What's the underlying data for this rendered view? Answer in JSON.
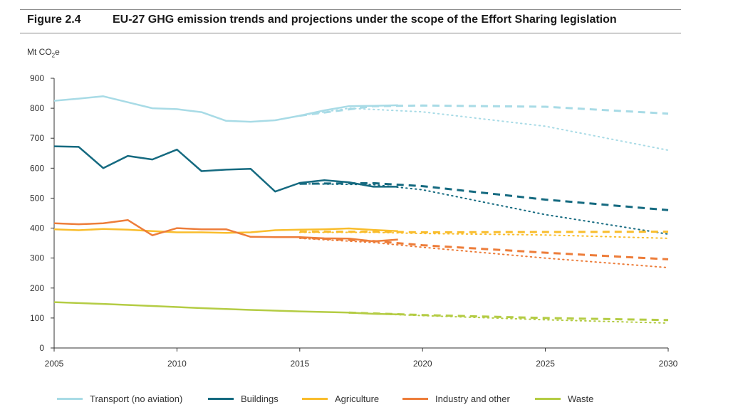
{
  "figure": {
    "label": "Figure 2.4",
    "title": "EU-27 GHG emission trends and projections under the scope of the Effort Sharing legislation"
  },
  "axis": {
    "unit_prefix": "Mt CO",
    "unit_sub": "2",
    "unit_suffix": "e"
  },
  "chart_data": {
    "type": "line",
    "title": "EU-27 GHG emission trends and projections under the scope of the Effort Sharing legislation",
    "ylabel": "Mt CO2e",
    "xlabel": "",
    "xlim": [
      2005,
      2030
    ],
    "ylim": [
      0,
      900
    ],
    "x_ticks": [
      2005,
      2010,
      2015,
      2020,
      2025,
      2030
    ],
    "y_ticks": [
      0,
      100,
      200,
      300,
      400,
      500,
      600,
      700,
      800,
      900
    ],
    "grid": false,
    "legend_position": "bottom",
    "series": [
      {
        "name": "Transport (no aviation)",
        "color": "#a8dbe6",
        "historic": [
          [
            2005,
            825
          ],
          [
            2006,
            832
          ],
          [
            2007,
            840
          ],
          [
            2008,
            820
          ],
          [
            2009,
            800
          ],
          [
            2010,
            797
          ],
          [
            2011,
            787
          ],
          [
            2012,
            758
          ],
          [
            2013,
            755
          ],
          [
            2014,
            760
          ],
          [
            2015,
            775
          ],
          [
            2016,
            793
          ],
          [
            2017,
            807
          ],
          [
            2018,
            808
          ],
          [
            2019,
            810
          ]
        ],
        "projection_wem": [
          [
            2015,
            775
          ],
          [
            2018,
            807
          ],
          [
            2020,
            809
          ],
          [
            2025,
            805
          ],
          [
            2030,
            782
          ]
        ],
        "projection_wam": [
          [
            2015,
            775
          ],
          [
            2017,
            800
          ],
          [
            2020,
            788
          ],
          [
            2025,
            740
          ],
          [
            2030,
            660
          ]
        ]
      },
      {
        "name": "Buildings",
        "color": "#156a80",
        "historic": [
          [
            2005,
            673
          ],
          [
            2006,
            671
          ],
          [
            2007,
            600
          ],
          [
            2008,
            641
          ],
          [
            2009,
            629
          ],
          [
            2010,
            662
          ],
          [
            2011,
            590
          ],
          [
            2012,
            595
          ],
          [
            2013,
            598
          ],
          [
            2014,
            522
          ],
          [
            2015,
            551
          ],
          [
            2016,
            560
          ],
          [
            2017,
            553
          ],
          [
            2018,
            538
          ],
          [
            2019,
            538
          ]
        ],
        "projection_wem": [
          [
            2015,
            548
          ],
          [
            2018,
            550
          ],
          [
            2020,
            540
          ],
          [
            2025,
            495
          ],
          [
            2030,
            460
          ]
        ],
        "projection_wam": [
          [
            2015,
            548
          ],
          [
            2018,
            545
          ],
          [
            2020,
            528
          ],
          [
            2025,
            445
          ],
          [
            2030,
            380
          ]
        ]
      },
      {
        "name": "Agriculture",
        "color": "#f9bd2c",
        "historic": [
          [
            2005,
            396
          ],
          [
            2006,
            393
          ],
          [
            2007,
            397
          ],
          [
            2008,
            395
          ],
          [
            2009,
            390
          ],
          [
            2010,
            386
          ],
          [
            2011,
            386
          ],
          [
            2012,
            384
          ],
          [
            2013,
            386
          ],
          [
            2014,
            393
          ],
          [
            2015,
            395
          ],
          [
            2016,
            396
          ],
          [
            2017,
            399
          ],
          [
            2018,
            394
          ],
          [
            2019,
            390
          ]
        ],
        "projection_wem": [
          [
            2015,
            388
          ],
          [
            2018,
            388
          ],
          [
            2020,
            386
          ],
          [
            2025,
            387
          ],
          [
            2030,
            388
          ]
        ],
        "projection_wam": [
          [
            2015,
            386
          ],
          [
            2018,
            386
          ],
          [
            2020,
            382
          ],
          [
            2025,
            377
          ],
          [
            2030,
            366
          ]
        ]
      },
      {
        "name": "Industry and other",
        "color": "#ed7d3a",
        "historic": [
          [
            2005,
            416
          ],
          [
            2006,
            413
          ],
          [
            2007,
            416
          ],
          [
            2008,
            427
          ],
          [
            2009,
            376
          ],
          [
            2010,
            400
          ],
          [
            2011,
            396
          ],
          [
            2012,
            396
          ],
          [
            2013,
            371
          ],
          [
            2014,
            370
          ],
          [
            2015,
            370
          ],
          [
            2016,
            366
          ],
          [
            2017,
            365
          ],
          [
            2018,
            356
          ],
          [
            2019,
            362
          ]
        ],
        "projection_wem": [
          [
            2015,
            368
          ],
          [
            2018,
            357
          ],
          [
            2020,
            343
          ],
          [
            2025,
            318
          ],
          [
            2030,
            296
          ]
        ],
        "projection_wam": [
          [
            2015,
            366
          ],
          [
            2018,
            352
          ],
          [
            2020,
            336
          ],
          [
            2025,
            300
          ],
          [
            2030,
            268
          ]
        ]
      },
      {
        "name": "Waste",
        "color": "#b4cc44",
        "historic": [
          [
            2005,
            153
          ],
          [
            2007,
            147
          ],
          [
            2009,
            140
          ],
          [
            2011,
            133
          ],
          [
            2013,
            127
          ],
          [
            2015,
            122
          ],
          [
            2017,
            118
          ],
          [
            2018,
            114
          ],
          [
            2019,
            112
          ]
        ],
        "projection_wem": [
          [
            2017,
            118
          ],
          [
            2020,
            110
          ],
          [
            2025,
            100
          ],
          [
            2030,
            93
          ]
        ],
        "projection_wam": [
          [
            2017,
            117
          ],
          [
            2020,
            108
          ],
          [
            2025,
            94
          ],
          [
            2030,
            83
          ]
        ]
      }
    ]
  }
}
